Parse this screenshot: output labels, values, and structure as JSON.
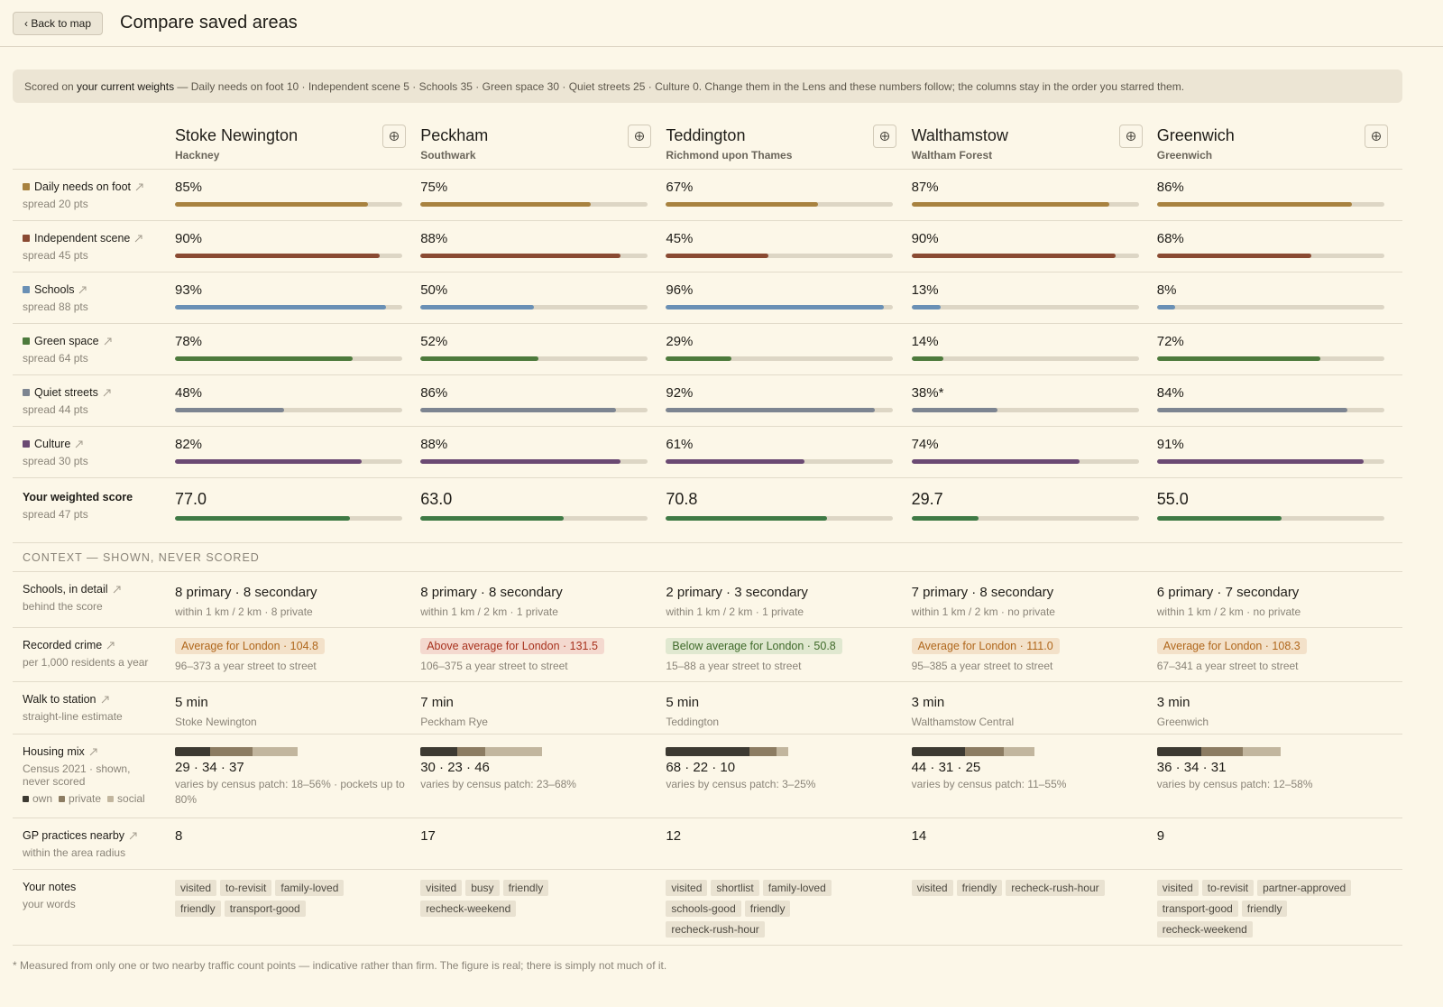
{
  "header": {
    "back": "‹ Back to map",
    "title": "Compare saved areas"
  },
  "banner": {
    "lead": "Scored on ",
    "emphasis": "your current weights",
    "rest": " — Daily needs on foot 10 · Independent scene 5 · Schools 35 · Green space 30 · Quiet streets 25 · Culture 0. Change them in the Lens and these numbers follow; the columns stay in the order you starred them."
  },
  "areas": [
    {
      "name": "Stoke Newington",
      "borough": "Hackney"
    },
    {
      "name": "Peckham",
      "borough": "Southwark"
    },
    {
      "name": "Teddington",
      "borough": "Richmond upon Thames"
    },
    {
      "name": "Walthamstow",
      "borough": "Waltham Forest"
    },
    {
      "name": "Greenwich",
      "borough": "Greenwich"
    }
  ],
  "xlim": [
    0,
    100
  ],
  "metrics": [
    {
      "label": "Daily needs on foot",
      "spread": "spread 20 pts",
      "color": "#a8823f",
      "values": [
        85,
        75,
        67,
        87,
        86
      ],
      "value_labels": [
        "85%",
        "75%",
        "67%",
        "87%",
        "86%"
      ]
    },
    {
      "label": "Independent scene",
      "spread": "spread 45 pts",
      "color": "#8a4a32",
      "values": [
        90,
        88,
        45,
        90,
        68
      ],
      "value_labels": [
        "90%",
        "88%",
        "45%",
        "90%",
        "68%"
      ]
    },
    {
      "label": "Schools",
      "spread": "spread 88 pts",
      "color": "#6a90b5",
      "values": [
        93,
        50,
        96,
        13,
        8
      ],
      "value_labels": [
        "93%",
        "50%",
        "96%",
        "13%",
        "8%"
      ]
    },
    {
      "label": "Green space",
      "spread": "spread 64 pts",
      "color": "#4d7a3c",
      "values": [
        78,
        52,
        29,
        14,
        72
      ],
      "value_labels": [
        "78%",
        "52%",
        "29%",
        "14%",
        "72%"
      ]
    },
    {
      "label": "Quiet streets",
      "spread": "spread 44 pts",
      "color": "#7d8591",
      "values": [
        48,
        86,
        92,
        38,
        84
      ],
      "value_labels": [
        "48%",
        "86%",
        "92%",
        "38%*",
        "84%"
      ]
    },
    {
      "label": "Culture",
      "spread": "spread 30 pts",
      "color": "#6b4a73",
      "values": [
        82,
        88,
        61,
        74,
        91
      ],
      "value_labels": [
        "82%",
        "88%",
        "61%",
        "74%",
        "91%"
      ]
    }
  ],
  "weighted": {
    "label": "Your weighted score",
    "spread": "spread 47 pts",
    "color": "#3f7a45",
    "values": [
      77.0,
      63.0,
      70.8,
      29.7,
      55.0
    ],
    "value_labels": [
      "77.0",
      "63.0",
      "70.8",
      "29.7",
      "55.0"
    ]
  },
  "context": {
    "heading": "CONTEXT — SHOWN, NEVER SCORED",
    "schools": {
      "label": "Schools, in detail",
      "note": "behind the score",
      "cells": [
        {
          "main": "8 primary · 8 secondary",
          "sub": "within 1 km / 2 km · 8 private"
        },
        {
          "main": "8 primary · 8 secondary",
          "sub": "within 1 km / 2 km · 1 private"
        },
        {
          "main": "2 primary · 3 secondary",
          "sub": "within 1 km / 2 km · 1 private"
        },
        {
          "main": "7 primary · 8 secondary",
          "sub": "within 1 km / 2 km · no private"
        },
        {
          "main": "6 primary · 7 secondary",
          "sub": "within 1 km / 2 km · no private"
        }
      ]
    },
    "crime": {
      "label": "Recorded crime",
      "note": "per 1,000 residents a year",
      "cells": [
        {
          "badge": "Average for London · 104.8",
          "tone": "average",
          "sub": "96–373 a year street to street"
        },
        {
          "badge": "Above average for London · 131.5",
          "tone": "above",
          "sub": "106–375 a year street to street"
        },
        {
          "badge": "Below average for London · 50.8",
          "tone": "below",
          "sub": "15–88 a year street to street"
        },
        {
          "badge": "Average for London · 111.0",
          "tone": "average",
          "sub": "95–385 a year street to street"
        },
        {
          "badge": "Average for London · 108.3",
          "tone": "average",
          "sub": "67–341 a year street to street"
        }
      ]
    },
    "walk": {
      "label": "Walk to station",
      "note": "straight-line estimate",
      "cells": [
        {
          "main": "5 min",
          "sub": "Stoke Newington"
        },
        {
          "main": "7 min",
          "sub": "Peckham Rye"
        },
        {
          "main": "5 min",
          "sub": "Teddington"
        },
        {
          "main": "3 min",
          "sub": "Walthamstow Central"
        },
        {
          "main": "3 min",
          "sub": "Greenwich"
        }
      ]
    },
    "housing": {
      "label": "Housing mix",
      "note": "Census 2021 · shown, never scored",
      "legend": [
        {
          "name": "own",
          "color": "#3d3a32"
        },
        {
          "name": "private",
          "color": "#8c7c62"
        },
        {
          "name": "social",
          "color": "#c2b69e"
        }
      ],
      "cells": [
        {
          "values": [
            29,
            34,
            37
          ],
          "label": "29 · 34 · 37",
          "sub": "varies by census patch: 18–56% · pockets up to 80%"
        },
        {
          "values": [
            30,
            23,
            46
          ],
          "label": "30 · 23 · 46",
          "sub": "varies by census patch: 23–68%"
        },
        {
          "values": [
            68,
            22,
            10
          ],
          "label": "68 · 22 · 10",
          "sub": "varies by census patch: 3–25%"
        },
        {
          "values": [
            44,
            31,
            25
          ],
          "label": "44 · 31 · 25",
          "sub": "varies by census patch: 11–55%"
        },
        {
          "values": [
            36,
            34,
            31
          ],
          "label": "36 · 34 · 31",
          "sub": "varies by census patch: 12–58%"
        }
      ]
    },
    "gp": {
      "label": "GP practices nearby",
      "note": "within the area radius",
      "cells": [
        8,
        17,
        12,
        14,
        9
      ]
    },
    "notes": {
      "label": "Your notes",
      "note": "your words",
      "cells": [
        [
          "visited",
          "to-revisit",
          "family-loved",
          "friendly",
          "transport-good"
        ],
        [
          "visited",
          "busy",
          "friendly",
          "recheck-weekend"
        ],
        [
          "visited",
          "shortlist",
          "family-loved",
          "schools-good",
          "friendly",
          "recheck-rush-hour"
        ],
        [
          "visited",
          "friendly",
          "recheck-rush-hour"
        ],
        [
          "visited",
          "to-revisit",
          "partner-approved",
          "transport-good",
          "friendly",
          "recheck-weekend"
        ]
      ]
    }
  },
  "footnote": "* Measured from only one or two nearby traffic count points — indicative rather than firm. The figure is real; there is simply not much of it."
}
